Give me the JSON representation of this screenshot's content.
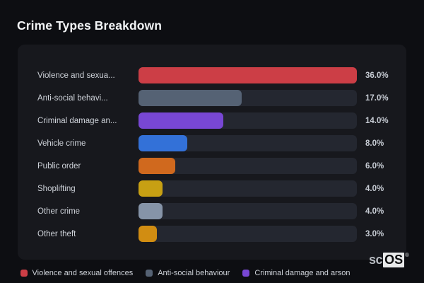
{
  "header": {
    "title": "Crime Types Breakdown"
  },
  "chart_data": {
    "type": "bar",
    "orientation": "horizontal",
    "title": "Crime Types Breakdown",
    "categories": [
      "Violence and sexual offences",
      "Anti-social behaviour",
      "Criminal damage and arson",
      "Vehicle crime",
      "Public order",
      "Shoplifting",
      "Other crime",
      "Other theft"
    ],
    "display_labels": [
      "Violence and sexua...",
      "Anti-social behavi...",
      "Criminal damage an...",
      "Vehicle crime",
      "Public order",
      "Shoplifting",
      "Other crime",
      "Other theft"
    ],
    "values": [
      36.0,
      17.0,
      14.0,
      8.0,
      6.0,
      4.0,
      4.0,
      3.0
    ],
    "value_labels": [
      "36.0%",
      "17.0%",
      "14.0%",
      "8.0%",
      "6.0%",
      "4.0%",
      "4.0%",
      "3.0%"
    ],
    "unit": "%",
    "xlim": [
      0,
      36
    ],
    "grid": false,
    "bar_colors": [
      "#cc3e46",
      "#556274",
      "#7847d4",
      "#3371d8",
      "#d0691e",
      "#c7a013",
      "#8694a8",
      "#d18d12"
    ],
    "legend_position": "bottom",
    "legend": [
      {
        "label": "Violence and sexual offences",
        "color": "#cc3e46"
      },
      {
        "label": "Anti-social behaviour",
        "color": "#556274"
      },
      {
        "label": "Criminal damage and arson",
        "color": "#7847d4"
      }
    ]
  },
  "watermark": {
    "prefix": "sc",
    "name": "OS",
    "mark": "®"
  },
  "colors": {
    "page_bg": "#0d0e12",
    "card_bg": "#17181d",
    "track": "#242730",
    "title_text": "#f2f4f6",
    "label_text": "#ced2d9",
    "value_text": "#c6cbd3",
    "legend_text": "#ced2d9"
  }
}
